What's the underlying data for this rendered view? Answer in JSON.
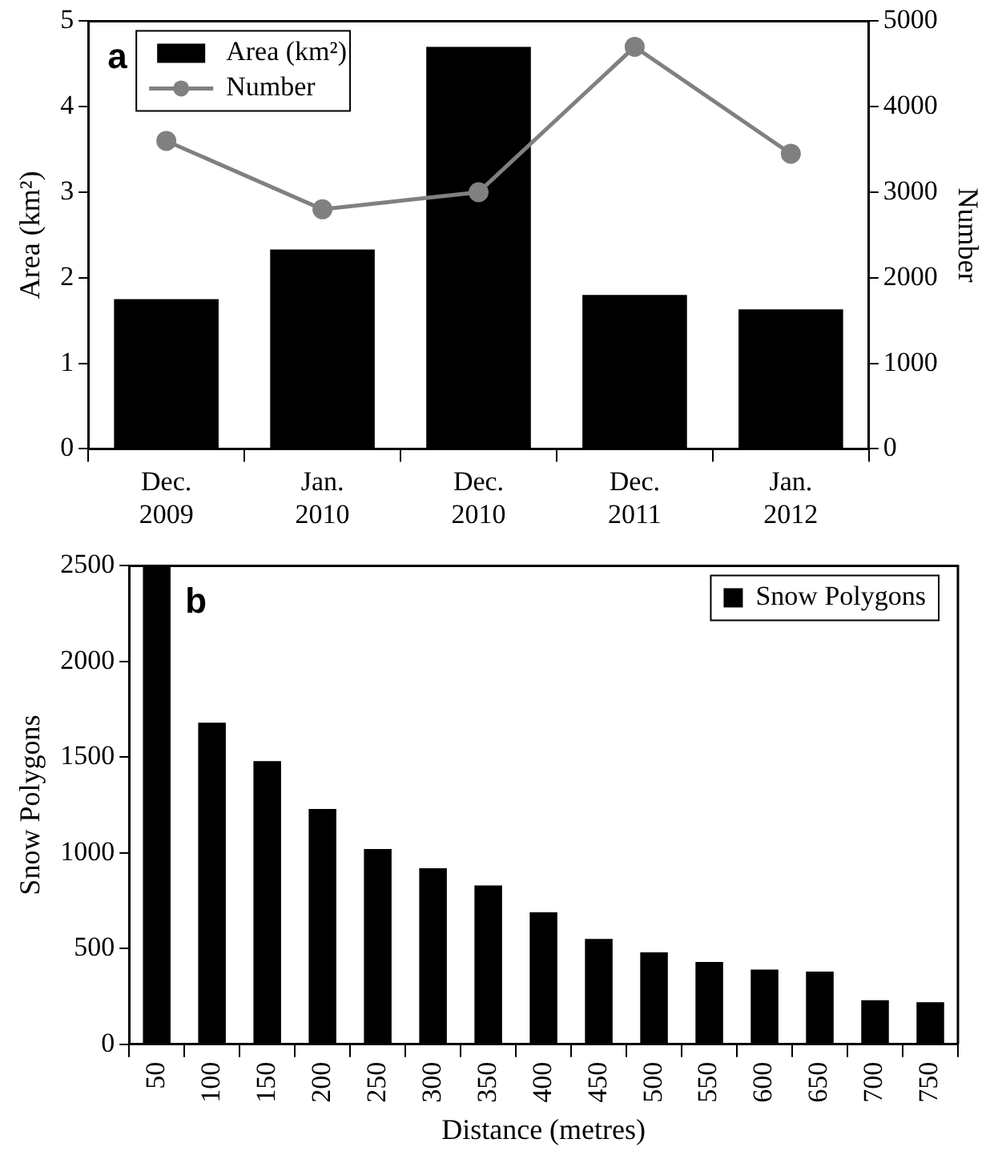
{
  "chart_data": [
    {
      "type": "bar",
      "categories": [
        "Dec. 2009",
        "Jan. 2010",
        "Dec. 2010",
        "Dec. 2011",
        "Jan. 2012"
      ],
      "series": [
        {
          "name": "Area (km²)",
          "color": "#000000",
          "values": [
            1.75,
            2.33,
            4.7,
            1.8,
            1.63
          ]
        },
        {
          "name": "Number",
          "type": "line",
          "axis": "y2",
          "color": "#808080",
          "values": [
            3600,
            2800,
            3000,
            4700,
            3450
          ]
        }
      ],
      "ylabel": "Area (km²)",
      "y2label": "Number",
      "ylim": [
        0,
        5
      ],
      "yticks": [
        0,
        1,
        2,
        3,
        4,
        5
      ],
      "y2lim": [
        0,
        5000
      ],
      "y2ticks": [
        0,
        1000,
        2000,
        3000,
        4000,
        5000
      ],
      "marker": "circle",
      "grid": false,
      "legend": "top left",
      "annotations": [
        "a"
      ]
    },
    {
      "type": "bar",
      "categories": [
        "50",
        "100",
        "150",
        "200",
        "250",
        "300",
        "350",
        "400",
        "450",
        "500",
        "550",
        "600",
        "650",
        "700",
        "750"
      ],
      "series": [
        {
          "name": "Snow Polygons",
          "color": "#000000",
          "values": [
            2500,
            1680,
            1480,
            1230,
            1020,
            920,
            830,
            690,
            550,
            480,
            430,
            390,
            380,
            230,
            220
          ]
        }
      ],
      "xlabel": "Distance (metres)",
      "ylabel": "Snow Polygons",
      "ylim": [
        0,
        2500
      ],
      "yticks": [
        0,
        500,
        1000,
        1500,
        2000,
        2500
      ],
      "grid": false,
      "legend": "top right",
      "annotations": [
        "b"
      ]
    }
  ]
}
